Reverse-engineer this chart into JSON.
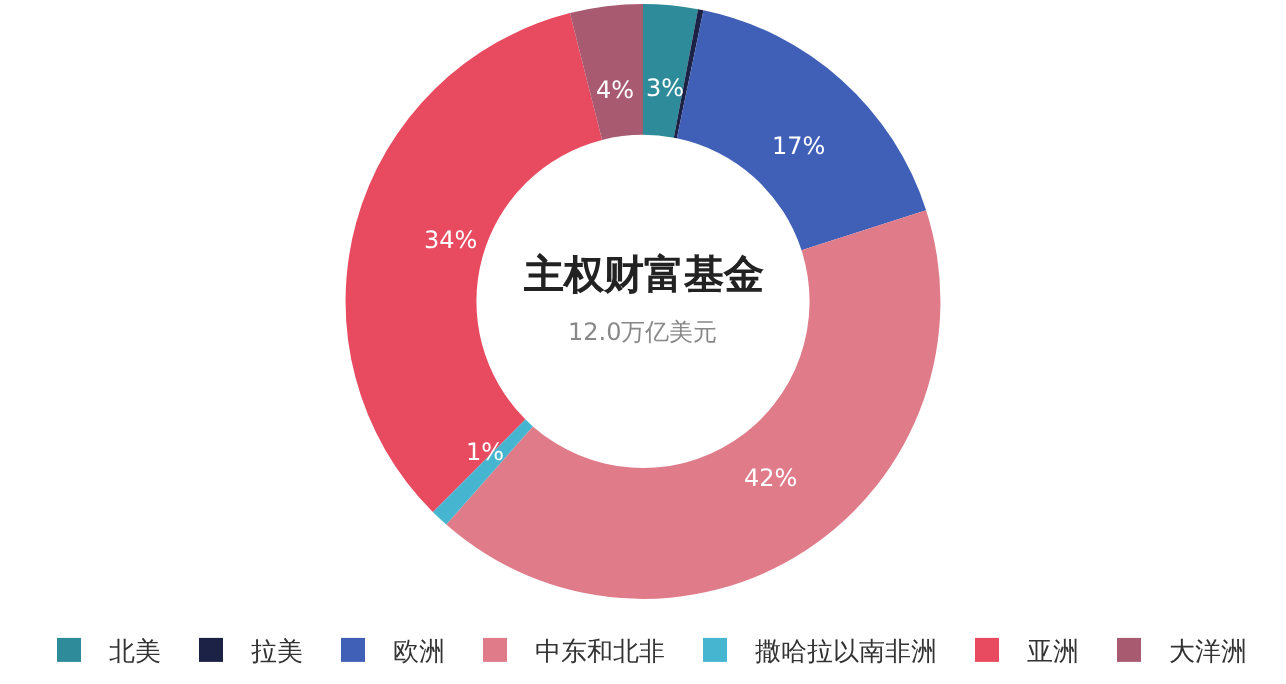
{
  "chart_data": {
    "type": "donut",
    "title": "主权财富基金",
    "subtitle": "12.0万亿美元",
    "categories": [
      "北美",
      "拉美",
      "欧洲",
      "中东和北非",
      "撒哈拉以南非洲",
      "亚洲",
      "大洋洲"
    ],
    "values": [
      3,
      0.3,
      17,
      42,
      1,
      34,
      4
    ],
    "value_labels": [
      "3%",
      null,
      "17%",
      "42%",
      "1%",
      "34%",
      "4%"
    ],
    "colors": [
      "#2e8b9a",
      "#1c2146",
      "#4060b8",
      "#e07b8a",
      "#45b5d0",
      "#e84a60",
      "#a85a70"
    ],
    "legend": "bottom"
  }
}
